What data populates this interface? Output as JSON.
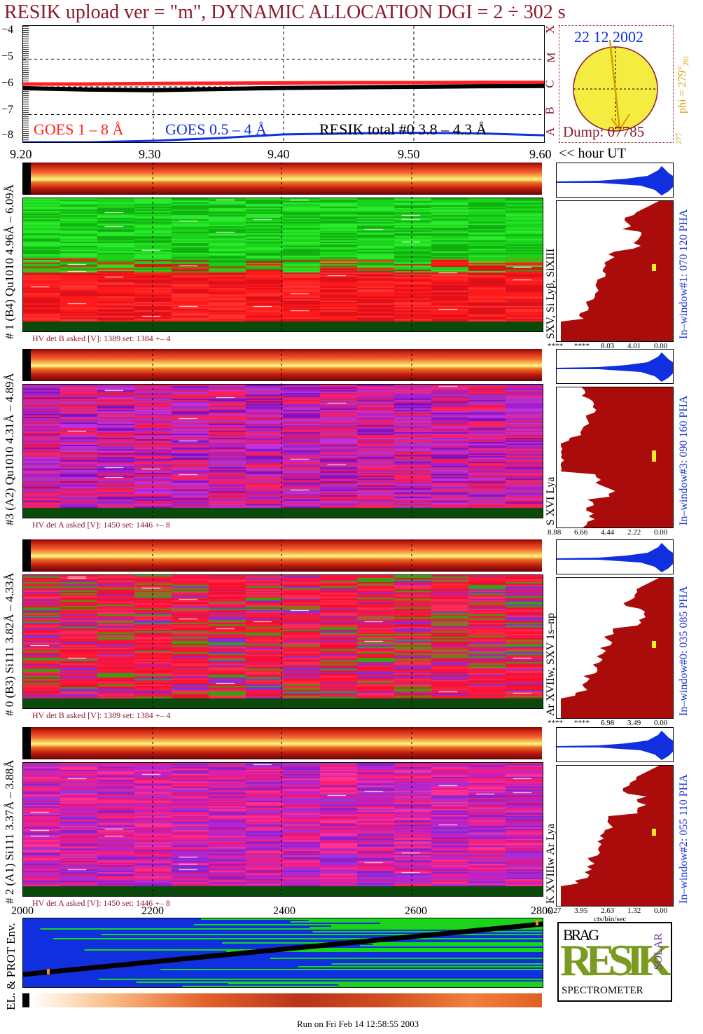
{
  "header": {
    "title": "RESIK upload ver = \"m\", DYNAMIC ALLOCATION  DGI =   2 ÷ 302 s"
  },
  "lightcurve": {
    "yticks": [
      "−4",
      "−5",
      "−6",
      "−7",
      "−8"
    ],
    "xticks": [
      "9.20",
      "9.30",
      "9.40",
      "9.50",
      "9.60"
    ],
    "x_unit_label": "<< hour UT",
    "goes_classes": [
      "X",
      "M",
      "C",
      "B",
      "A"
    ],
    "legend": {
      "goes_long": "GOES 1 – 8 Å",
      "goes_short": "GOES 0.5 – 4 Å",
      "resik": "RESIK total #0  3.8 – 4.3 Å"
    },
    "colors": {
      "goes_long": "#ff2020",
      "goes_short": "#1030e0",
      "resik": "#000000"
    }
  },
  "chart_data": {
    "type": "line",
    "title": "RESIK upload ver = \"m\", DYNAMIC ALLOCATION  DGI =   2 ÷ 302 s",
    "xlabel": "<< hour UT",
    "ylabel": "",
    "xlim": [
      9.2,
      9.6
    ],
    "ylim": [
      -8,
      -3.8
    ],
    "x": [
      9.2,
      9.25,
      9.3,
      9.35,
      9.4,
      9.45,
      9.5,
      9.55,
      9.6
    ],
    "series": [
      {
        "name": "GOES 1 – 8 Å",
        "values": [
          -5.9,
          -5.9,
          -5.88,
          -5.87,
          -5.86,
          -5.85,
          -5.85,
          -5.84,
          -5.84
        ]
      },
      {
        "name": "GOES 0.5 – 4 Å",
        "values": [
          -8.0,
          -8.0,
          -7.95,
          -7.85,
          -7.72,
          -7.68,
          -7.66,
          -7.68,
          -7.75
        ]
      },
      {
        "name": "RESIK total #0  3.8 – 4.3 Å",
        "values": [
          -6.05,
          -6.1,
          -6.12,
          -6.08,
          -6.04,
          -6.02,
          -6.0,
          -5.98,
          -5.97
        ]
      }
    ]
  },
  "sun": {
    "date": "22 12 2002",
    "phi": "phi = 279°",
    "phi_sub": "281",
    "phi_bottom": "277",
    "dump": "Dump: 07785"
  },
  "panels": [
    {
      "left_label": "# 1 (B4) Qu1010 4.96Å – 6.09Å",
      "line_label": "SXV, Si Lyβ, SiXIII",
      "window_label": "In–window#1:  070 120 PHA",
      "hv": "HV det B asked [V]:  1389 set:  1384 +–    4",
      "hist_ticks": [
        "****",
        "****",
        "8.03",
        "4.01",
        "0.00"
      ],
      "palette": "green"
    },
    {
      "left_label": "#3 (A2) Qu1010  4.31Å – 4.89Å",
      "line_label": "S XVI Lya",
      "window_label": "In–window#3:  090 160 PHA",
      "hv": "HV det A asked [V]:  1450 set:  1446 +–    8",
      "hist_ticks": [
        "8.88",
        "6.66",
        "4.44",
        "2.22",
        "0.00"
      ],
      "palette": "purple"
    },
    {
      "left_label": "# 0 (B3) Si111  3.82Å – 4.33Å",
      "line_label": "Ar XVIIw,  SXV 1s–np",
      "window_label": "In–window#0:  035 085 PHA",
      "hv": "HV det B asked [V]:  1389 set:  1384 +–    4",
      "hist_ticks": [
        "****",
        "****",
        "6.98",
        "3.49",
        "0.00"
      ],
      "palette": "red"
    },
    {
      "left_label": "# 2 (A1) Si111  3.37Å – 3.88Å",
      "line_label": "K XVIIIw  Ar Lya",
      "window_label": "In–window#2:  055 110 PHA",
      "hv": "HV det A asked [V]:  1450 set:  1446 +–    8",
      "hist_ticks": [
        "5.27",
        "3.95",
        "2.63",
        "1.32",
        "0.00"
      ],
      "palette": "magenta"
    }
  ],
  "bottom": {
    "xticks": [
      "2000",
      "2200",
      "2400",
      "2600",
      "2800"
    ],
    "hist_xlabel": "cts/bin/sec",
    "left_label": "EL. & PROT Env."
  },
  "logo": {
    "letters_top": "BRAG",
    "letters_main": "RESIK",
    "letters_side": "SOLAR",
    "caption": "SPECTROMETER"
  },
  "footer": {
    "run": "Run on Fri Feb 14 12:58:55 2003"
  }
}
